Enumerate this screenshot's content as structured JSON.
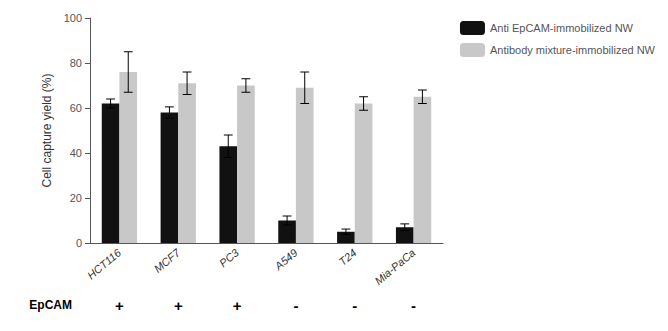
{
  "chart_data": {
    "type": "bar",
    "categories": [
      "HCT116",
      "MCF7",
      "PC3",
      "A549",
      "T24",
      "Mia-PaCa"
    ],
    "series": [
      {
        "name": "Anti EpCAM-immobilized NW",
        "color": "#111111",
        "values": [
          62,
          58,
          43,
          10,
          5,
          7
        ],
        "errors": [
          2,
          2.5,
          5,
          2,
          1.2,
          1.5
        ]
      },
      {
        "name": "Antibody mixture-immobilized NW",
        "color": "#c8c8c8",
        "values": [
          76,
          71,
          70,
          69,
          62,
          65
        ],
        "errors": [
          9,
          5,
          3,
          7,
          3,
          3
        ]
      }
    ],
    "ylabel": "Cell capture yield (%)",
    "ylim": [
      0,
      100
    ],
    "yticks": [
      0,
      20,
      40,
      60,
      80,
      100
    ],
    "grid": false,
    "legend": "right",
    "annotation_row": {
      "label": "EpCAM",
      "values": [
        "+",
        "+",
        "+",
        "-",
        "-",
        "-"
      ]
    }
  }
}
